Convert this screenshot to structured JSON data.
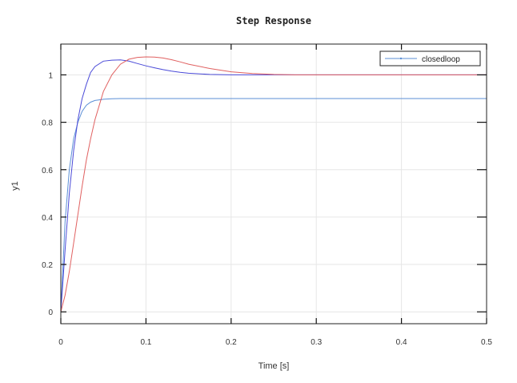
{
  "chart_data": {
    "type": "line",
    "title": "Step Response",
    "xlabel": "Time [s]",
    "ylabel": "y1",
    "xlim": [
      0,
      0.5
    ],
    "ylim": [
      -0.05,
      1.13
    ],
    "xticks": [
      0,
      0.1,
      0.2,
      0.3,
      0.4,
      0.5
    ],
    "xtick_labels": [
      "0",
      "0.1",
      "0.2",
      "0.3",
      "0.4",
      "0.5"
    ],
    "yticks": [
      0,
      0.2,
      0.4,
      0.6,
      0.8,
      1
    ],
    "ytick_labels": [
      "0",
      "0.2",
      "0.4",
      "0.6",
      "0.8",
      "1"
    ],
    "grid": true,
    "legend": {
      "position": "top-right",
      "entries": [
        "closedloop"
      ]
    },
    "x": [
      0,
      0.005,
      0.01,
      0.015,
      0.02,
      0.025,
      0.03,
      0.035,
      0.04,
      0.05,
      0.06,
      0.07,
      0.08,
      0.09,
      0.1,
      0.11,
      0.12,
      0.13,
      0.14,
      0.15,
      0.175,
      0.2,
      0.225,
      0.25,
      0.275,
      0.3,
      0.35,
      0.4,
      0.45,
      0.5
    ],
    "series": [
      {
        "color": "#5b8fd6",
        "values": [
          0,
          0.38,
          0.6,
          0.73,
          0.8,
          0.846,
          0.872,
          0.885,
          0.892,
          0.897,
          0.899,
          0.9,
          0.9,
          0.9,
          0.9,
          0.9,
          0.9,
          0.9,
          0.9,
          0.9,
          0.9,
          0.9,
          0.9,
          0.9,
          0.9,
          0.9,
          0.9,
          0.9,
          0.9,
          0.9
        ]
      },
      {
        "color": "#4a4ad8",
        "values": [
          0,
          0.26,
          0.5,
          0.68,
          0.81,
          0.9,
          0.96,
          1.01,
          1.035,
          1.058,
          1.062,
          1.063,
          1.058,
          1.048,
          1.038,
          1.03,
          1.022,
          1.016,
          1.011,
          1.007,
          1.002,
          1.0,
          1.0,
          1.0,
          1.0,
          1.0,
          1.0,
          1.0,
          1.0,
          1.0
        ]
      },
      {
        "color": "#e06060",
        "values": [
          0,
          0.07,
          0.17,
          0.29,
          0.41,
          0.53,
          0.64,
          0.73,
          0.81,
          0.93,
          1.0,
          1.045,
          1.066,
          1.074,
          1.076,
          1.075,
          1.071,
          1.064,
          1.055,
          1.045,
          1.027,
          1.013,
          1.006,
          1.002,
          1.0,
          1.0,
          1.0,
          1.0,
          1.0,
          1.0
        ]
      }
    ]
  }
}
